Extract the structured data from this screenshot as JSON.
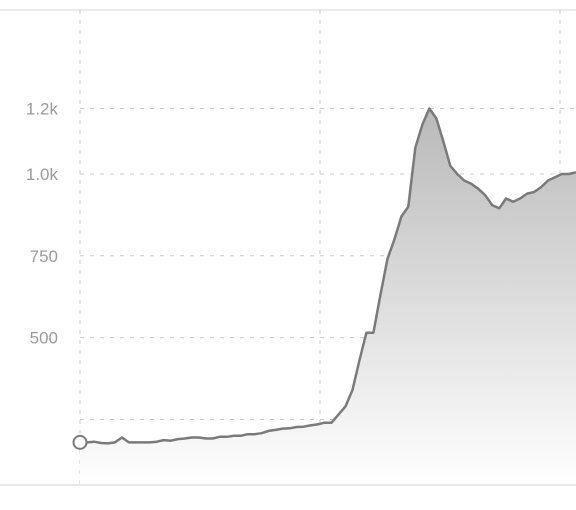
{
  "chart_data": {
    "type": "area",
    "title": "",
    "xlabel": "",
    "ylabel": "",
    "ylim": [
      0,
      1450
    ],
    "y_ticks": [
      {
        "value": 250,
        "label": ""
      },
      {
        "value": 500,
        "label": "500"
      },
      {
        "value": 750,
        "label": "750"
      },
      {
        "value": 1000,
        "label": "1.0k"
      },
      {
        "value": 1200,
        "label": "1.2k"
      }
    ],
    "grid": true,
    "legend": "none",
    "colors": {
      "line": "#7a7a7a",
      "fill_top": "#b9b9b9",
      "fill_bottom": "#ffffff",
      "grid": "#c8c8c8",
      "axis": "#cfcfcf"
    },
    "series": [
      {
        "x": [
          0,
          1,
          2,
          3,
          4,
          5,
          6,
          7,
          8,
          9,
          10,
          11,
          12,
          13,
          14,
          15,
          16,
          17,
          18,
          19,
          20,
          21,
          22,
          23,
          24,
          25,
          26,
          27,
          28,
          29,
          30,
          31,
          32,
          33,
          34,
          35,
          36,
          37,
          38,
          39,
          40,
          41,
          42,
          43,
          44,
          45,
          46,
          47,
          48,
          49,
          50,
          51,
          52,
          53,
          54,
          55,
          56,
          57,
          58,
          59,
          60,
          61,
          62,
          63,
          64,
          65,
          66,
          67,
          68,
          69,
          70,
          71
        ],
        "values": [
          180,
          180,
          182,
          178,
          177,
          180,
          195,
          180,
          180,
          180,
          180,
          182,
          187,
          185,
          190,
          192,
          195,
          195,
          192,
          192,
          197,
          197,
          200,
          200,
          205,
          205,
          208,
          215,
          218,
          222,
          223,
          227,
          228,
          232,
          235,
          240,
          240,
          265,
          290,
          340,
          430,
          515,
          515,
          630,
          740,
          800,
          870,
          900,
          1080,
          1150,
          1200,
          1170,
          1100,
          1025,
          1000,
          980,
          970,
          955,
          935,
          905,
          895,
          925,
          915,
          925,
          940,
          945,
          960,
          980,
          990,
          1000,
          1000,
          1005
        ]
      }
    ]
  }
}
